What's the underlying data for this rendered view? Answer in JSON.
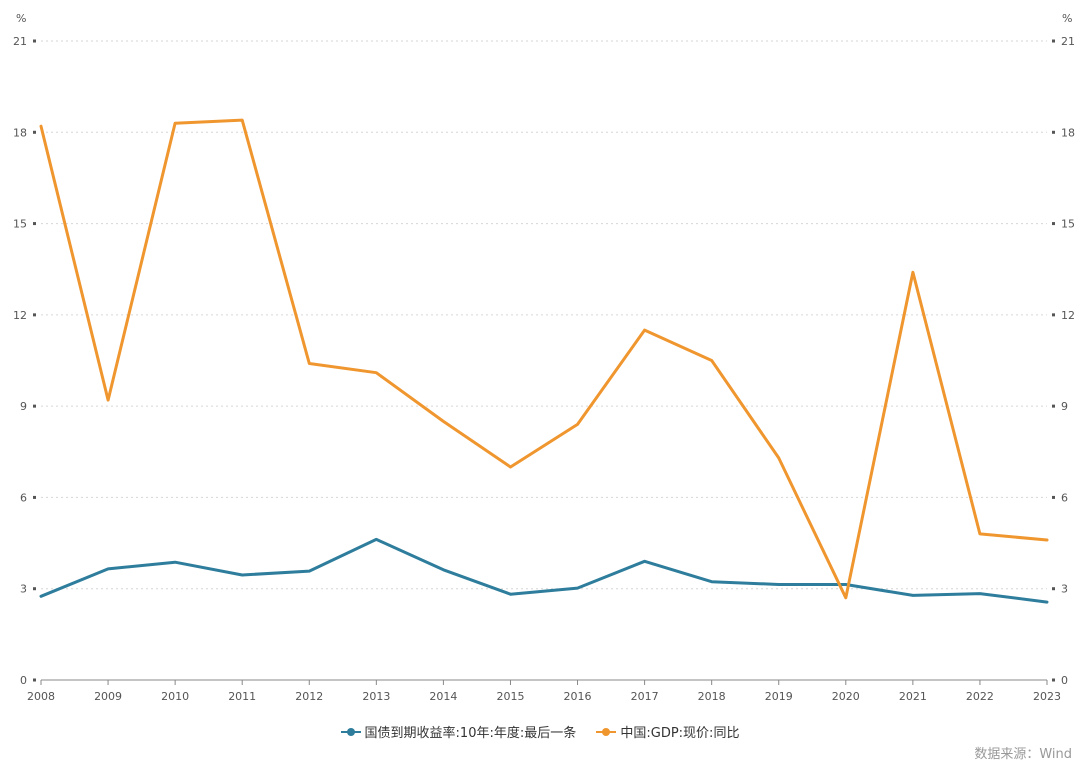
{
  "chart_data": {
    "type": "line",
    "categories": [
      "2008",
      "2009",
      "2010",
      "2011",
      "2012",
      "2013",
      "2014",
      "2015",
      "2016",
      "2017",
      "2018",
      "2019",
      "2020",
      "2021",
      "2022",
      "2023"
    ],
    "series": [
      {
        "name": "国债到期收益率:10年:年度:最后一条",
        "color": "#2e7d9c",
        "values": [
          2.75,
          3.65,
          3.87,
          3.45,
          3.58,
          4.62,
          3.62,
          2.82,
          3.02,
          3.9,
          3.23,
          3.14,
          3.14,
          2.78,
          2.84,
          2.56
        ]
      },
      {
        "name": "中国:GDP:现价:同比",
        "color": "#f0962f",
        "values": [
          18.2,
          9.2,
          18.3,
          18.4,
          10.4,
          10.1,
          8.5,
          7.0,
          8.4,
          11.5,
          10.5,
          7.3,
          2.7,
          13.4,
          4.8,
          4.6
        ]
      }
    ],
    "ylim": [
      0,
      21
    ],
    "yticks": [
      0,
      3,
      6,
      9,
      12,
      15,
      18,
      21
    ],
    "y_unit_left": "%",
    "y_unit_right": "%",
    "grid": true,
    "legend_position": "bottom-center",
    "source": "数据来源：Wind"
  }
}
